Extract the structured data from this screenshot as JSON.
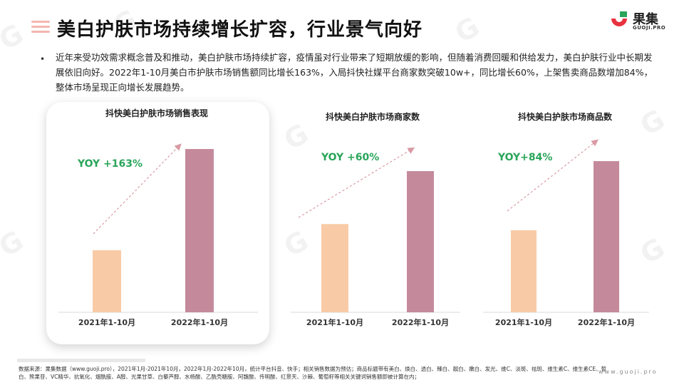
{
  "title": "美白护肤市场持续增长扩容，行业景气向好",
  "logo": {
    "name": "果集",
    "sub": "GUOJI.PRO"
  },
  "bullet_symbol": "•",
  "paragraph": "近年来受功效需求概念普及和推动，美白护肤市场持续扩容，疫情虽对行业带来了短期放缓的影响，但随着消费回暖和供给发力，美白护肤行业中长期发展依旧向好。2022年1-10月美白市护肤市场销售额同比增长163%，入局抖快社媒平台商家数突破10w+，同比增长60%，上架售卖商品数增加84%，整体市场呈现正向增长发展趋势。",
  "colors": {
    "bar_2021": "#f8cba6",
    "bar_2022": "#c48a9c",
    "yoy": "#2aa55a",
    "arrow": "#d99aa5"
  },
  "chart_data": [
    {
      "type": "bar",
      "title": "抖快美白护肤市场销售表现",
      "categories": [
        "2021年1-10月",
        "2022年1-10月"
      ],
      "values": [
        0.38,
        1.0
      ],
      "annotation": "YOY +163%"
    },
    {
      "type": "bar",
      "title": "抖快美白护肤市场商家数",
      "categories": [
        "2021年1-10月",
        "2022年1-10月"
      ],
      "values": [
        0.625,
        1.0
      ],
      "annotation": "YOY +60%"
    },
    {
      "type": "bar",
      "title": "抖快美白护肤市场商品数",
      "categories": [
        "2021年1-10月",
        "2022年1-10月"
      ],
      "values": [
        0.543,
        1.0
      ],
      "annotation": "YOY+84%"
    }
  ],
  "footnote": "数据来源：果集数据（www.guoji.pro），2021年1月-2021年10月，2022年1月-2022年10月，统计平台抖音、快手；相关销售数据为预估；商品标题带有美白、焕白、透白、臻白、靓白、嫩白、发光、维C、淡斑、祛斑、维生素C、维生素CE、皙白、熊果苷、VC精华、抗氧化、烟酰胺、A醇、光果甘草、白藜芦醇、水杨酸、乙酰壳糖胺、阿魏酸、传明酸、红景天、沙棘、葡萄籽等相关关键词销售额即被计算在内；",
  "site": "www.guoji.pro"
}
